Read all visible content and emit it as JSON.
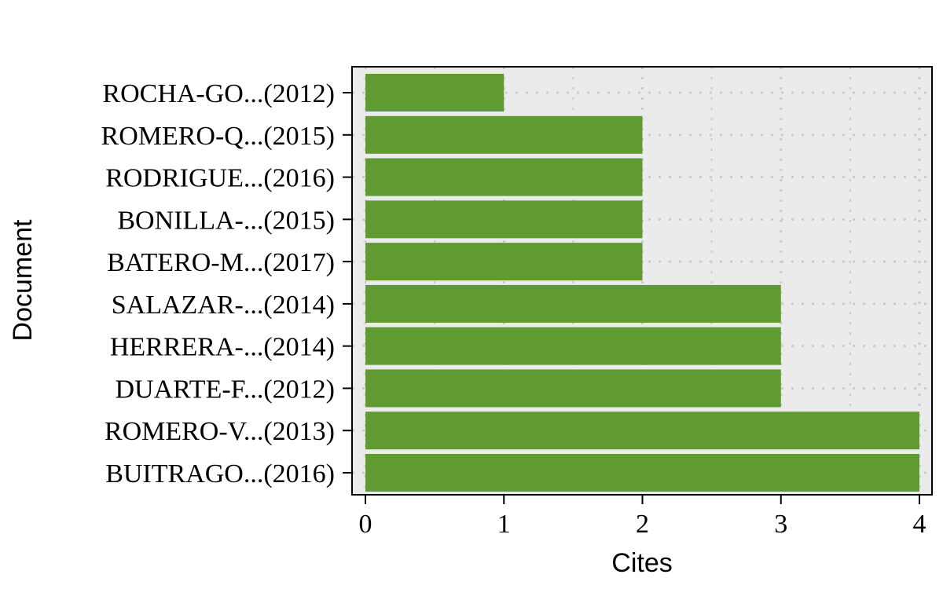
{
  "chart_data": {
    "type": "bar",
    "orientation": "horizontal",
    "categories": [
      "ROCHA-GO...(2012)",
      "ROMERO-Q...(2015)",
      "RODRIGUE...(2016)",
      "BONILLA-...(2015)",
      "BATERO-M...(2017)",
      "SALAZAR-...(2014)",
      "HERRERA-...(2014)",
      "DUARTE-F...(2012)",
      "ROMERO-V...(2013)",
      "BUITRAGO...(2016)"
    ],
    "values": [
      1,
      2,
      2,
      2,
      2,
      3,
      3,
      3,
      4,
      4
    ],
    "xlabel": "Cites",
    "ylabel": "Document",
    "xlim": [
      0,
      4
    ],
    "xticks": [
      "0",
      "1",
      "2",
      "3",
      "4"
    ],
    "grid": "dotted",
    "bar_color": "#5f9b30",
    "panel_background": "#ebebeb"
  }
}
